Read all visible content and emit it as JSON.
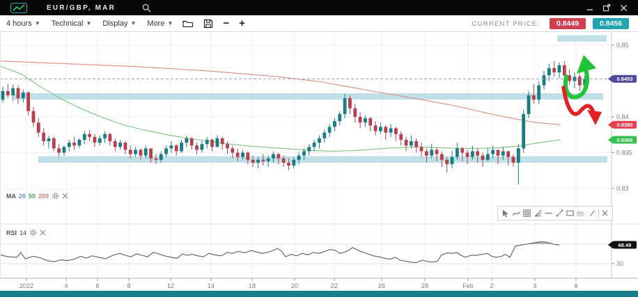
{
  "window": {
    "title": "EUR/GBP, MAR",
    "controls": {
      "minimize": "–",
      "popout": "popout",
      "close": "✕"
    }
  },
  "toolbar": {
    "menus": [
      {
        "label": "4 hours"
      },
      {
        "label": "Technical"
      },
      {
        "label": "Display"
      },
      {
        "label": "More"
      }
    ],
    "icons": [
      "open-chart",
      "save-chart",
      "zoom-out",
      "zoom-in"
    ],
    "zoom_out_glyph": "−",
    "zoom_in_glyph": "+",
    "current_price_label": "CURRENT PRICE:",
    "bid": "0.8449",
    "ask": "0.8456",
    "bid_color": "#d23f4e",
    "ask_color": "#21a3b1"
  },
  "legend_ma": {
    "name": "MA",
    "periods": [
      {
        "value": "20",
        "color": "#6b8fc9"
      },
      {
        "value": "50",
        "color": "#55a85a"
      },
      {
        "value": "200",
        "color": "#d87f77"
      }
    ]
  },
  "legend_rsi": {
    "name": "RSI",
    "period": "14"
  },
  "drawing_toolbar": {
    "icons": [
      "pointer",
      "brush",
      "pattern-grid",
      "pitchfork-lines",
      "horizontal-line",
      "trend-line",
      "rectangle",
      "text",
      "line",
      "close"
    ],
    "text_tool_label": "Abc"
  },
  "chart_data": {
    "type": "candlestick",
    "symbol": "EUR/GBP",
    "timeframe": "4 hours",
    "price_unit": 0.0001,
    "ylim": [
      0.8295,
      0.8525
    ],
    "first_open": 8424,
    "candles_hlc": [
      [
        8442,
        8420,
        8436
      ],
      [
        8446,
        8426,
        8430
      ],
      [
        8445,
        8422,
        8440
      ],
      [
        8444,
        8418,
        8426
      ],
      [
        8438,
        8420,
        8434
      ],
      [
        8436,
        8402,
        8408
      ],
      [
        8414,
        8386,
        8392
      ],
      [
        8398,
        8372,
        8378
      ],
      [
        8384,
        8360,
        8366
      ],
      [
        8374,
        8356,
        8370
      ],
      [
        8372,
        8352,
        8356
      ],
      [
        8362,
        8344,
        8350
      ],
      [
        8360,
        8346,
        8358
      ],
      [
        8368,
        8352,
        8364
      ],
      [
        8372,
        8354,
        8360
      ],
      [
        8370,
        8356,
        8368
      ],
      [
        8380,
        8362,
        8376
      ],
      [
        8382,
        8366,
        8372
      ],
      [
        8376,
        8358,
        8364
      ],
      [
        8374,
        8360,
        8370
      ],
      [
        8380,
        8364,
        8376
      ],
      [
        8378,
        8360,
        8366
      ],
      [
        8370,
        8352,
        8358
      ],
      [
        8368,
        8354,
        8364
      ],
      [
        8366,
        8348,
        8354
      ],
      [
        8360,
        8342,
        8348
      ],
      [
        8358,
        8344,
        8354
      ],
      [
        8356,
        8340,
        8346
      ],
      [
        8360,
        8342,
        8356
      ],
      [
        8354,
        8336,
        8342
      ],
      [
        8348,
        8334,
        8340
      ],
      [
        8352,
        8336,
        8348
      ],
      [
        8360,
        8344,
        8356
      ],
      [
        8366,
        8350,
        8360
      ],
      [
        8362,
        8346,
        8352
      ],
      [
        8368,
        8350,
        8364
      ],
      [
        8374,
        8358,
        8370
      ],
      [
        8372,
        8354,
        8360
      ],
      [
        8364,
        8348,
        8354
      ],
      [
        8366,
        8350,
        8362
      ],
      [
        8372,
        8356,
        8368
      ],
      [
        8370,
        8352,
        8358
      ],
      [
        8374,
        8358,
        8370
      ],
      [
        8372,
        8354,
        8362
      ],
      [
        8366,
        8348,
        8356
      ],
      [
        8360,
        8342,
        8350
      ],
      [
        8356,
        8338,
        8344
      ],
      [
        8354,
        8340,
        8350
      ],
      [
        8352,
        8334,
        8340
      ],
      [
        8346,
        8330,
        8336
      ],
      [
        8344,
        8328,
        8340
      ],
      [
        8348,
        8332,
        8338
      ],
      [
        8346,
        8330,
        8342
      ],
      [
        8352,
        8336,
        8348
      ],
      [
        8350,
        8334,
        8342
      ],
      [
        8346,
        8330,
        8336
      ],
      [
        8342,
        8326,
        8332
      ],
      [
        8344,
        8328,
        8340
      ],
      [
        8350,
        8334,
        8346
      ],
      [
        8356,
        8340,
        8352
      ],
      [
        8362,
        8346,
        8358
      ],
      [
        8368,
        8352,
        8364
      ],
      [
        8374,
        8356,
        8370
      ],
      [
        8382,
        8364,
        8378
      ],
      [
        8390,
        8372,
        8386
      ],
      [
        8398,
        8380,
        8394
      ],
      [
        8408,
        8388,
        8404
      ],
      [
        8432,
        8398,
        8426
      ],
      [
        8430,
        8404,
        8412
      ],
      [
        8418,
        8392,
        8400
      ],
      [
        8406,
        8384,
        8392
      ],
      [
        8402,
        8386,
        8398
      ],
      [
        8400,
        8380,
        8388
      ],
      [
        8394,
        8374,
        8380
      ],
      [
        8392,
        8376,
        8386
      ],
      [
        8388,
        8368,
        8378
      ],
      [
        8390,
        8372,
        8384
      ],
      [
        8386,
        8366,
        8376
      ],
      [
        8380,
        8360,
        8368
      ],
      [
        8372,
        8352,
        8360
      ],
      [
        8374,
        8356,
        8366
      ],
      [
        8370,
        8350,
        8358
      ],
      [
        8364,
        8344,
        8352
      ],
      [
        8356,
        8336,
        8346
      ],
      [
        8362,
        8342,
        8354
      ],
      [
        8358,
        8338,
        8348
      ],
      [
        8352,
        8330,
        8340
      ],
      [
        8344,
        8322,
        8334
      ],
      [
        8352,
        8328,
        8344
      ],
      [
        8364,
        8340,
        8356
      ],
      [
        8358,
        8338,
        8350
      ],
      [
        8354,
        8334,
        8344
      ],
      [
        8360,
        8340,
        8352
      ],
      [
        8356,
        8336,
        8346
      ],
      [
        8350,
        8330,
        8340
      ],
      [
        8356,
        8338,
        8348
      ],
      [
        8360,
        8342,
        8354
      ],
      [
        8354,
        8334,
        8346
      ],
      [
        8358,
        8340,
        8352
      ],
      [
        8352,
        8332,
        8344
      ],
      [
        8348,
        8330,
        8336
      ],
      [
        8362,
        8306,
        8356
      ],
      [
        8410,
        8350,
        8404
      ],
      [
        8436,
        8398,
        8430
      ],
      [
        8446,
        8418,
        8424
      ],
      [
        8450,
        8418,
        8444
      ],
      [
        8464,
        8438,
        8458
      ],
      [
        8474,
        8450,
        8468
      ],
      [
        8478,
        8456,
        8462
      ],
      [
        8476,
        8454,
        8472
      ],
      [
        8478,
        8450,
        8458
      ],
      [
        8466,
        8444,
        8450
      ],
      [
        8462,
        8440,
        8456
      ],
      [
        8460,
        8436,
        8444
      ],
      [
        8458,
        8438,
        8453
      ]
    ],
    "up_color": "#1a7d85",
    "down_color": "#b6414d",
    "ma_200": {
      "color": "#dd8a81",
      "points": [
        [
          0,
          8478
        ],
        [
          100,
          8474
        ],
        [
          200,
          8470
        ],
        [
          300,
          8464
        ],
        [
          400,
          8456
        ],
        [
          460,
          8449
        ],
        [
          500,
          8442
        ],
        [
          540,
          8435
        ],
        [
          600,
          8425
        ],
        [
          650,
          8416
        ],
        [
          700,
          8405
        ],
        [
          740,
          8397
        ],
        [
          770,
          8392
        ],
        [
          805,
          8389
        ]
      ]
    },
    "ma_50": {
      "color": "#7cc284",
      "points": [
        [
          0,
          8471
        ],
        [
          30,
          8460
        ],
        [
          60,
          8441
        ],
        [
          90,
          8424
        ],
        [
          120,
          8410
        ],
        [
          150,
          8398
        ],
        [
          180,
          8388
        ],
        [
          210,
          8381
        ],
        [
          240,
          8375
        ],
        [
          270,
          8370
        ],
        [
          300,
          8366
        ],
        [
          330,
          8362
        ],
        [
          360,
          8359
        ],
        [
          390,
          8357
        ],
        [
          420,
          8355
        ],
        [
          450,
          8353
        ],
        [
          480,
          8352
        ],
        [
          510,
          8353
        ],
        [
          540,
          8355
        ],
        [
          570,
          8357
        ],
        [
          600,
          8358
        ],
        [
          630,
          8357
        ],
        [
          660,
          8356
        ],
        [
          690,
          8356
        ],
        [
          720,
          8357
        ],
        [
          750,
          8360
        ],
        [
          775,
          8364
        ],
        [
          805,
          8368
        ]
      ]
    },
    "zones": [
      {
        "name": "resistance-zone",
        "x1": 20,
        "x2": 866,
        "p1": 8424,
        "p2": 8433
      },
      {
        "name": "support-zone",
        "x1": 55,
        "x2": 872,
        "p1": 8336,
        "p2": 8345
      },
      {
        "name": "upper-resistance-zone",
        "x1": 800,
        "x2": 871,
        "p1": 8505,
        "p2": 8514
      }
    ],
    "zone_color": "#b9dde4",
    "last_price_line": {
      "value": 8453,
      "label": "0.8453",
      "badge_color": "#4f4c9f"
    },
    "price_axis": {
      "ticks": [
        {
          "label": "0.85",
          "value": 8500
        },
        {
          "label": "0.84",
          "value": 8400
        },
        {
          "label": "0.835",
          "value": 8350
        },
        {
          "label": "0.83",
          "value": 8300
        }
      ],
      "badges": [
        {
          "label": "0.8389",
          "value": 8389,
          "color": "#e8404e"
        },
        {
          "label": "0.8368",
          "value": 8368,
          "color": "#35c14e"
        }
      ]
    },
    "time_axis": {
      "ticks": [
        {
          "label": "2022",
          "x": 38
        },
        {
          "label": "4",
          "x": 95
        },
        {
          "label": "6",
          "x": 140
        },
        {
          "label": "8",
          "x": 185
        },
        {
          "label": "12",
          "x": 245
        },
        {
          "label": "14",
          "x": 303
        },
        {
          "label": "18",
          "x": 362
        },
        {
          "label": "20",
          "x": 423
        },
        {
          "label": "22",
          "x": 480
        },
        {
          "label": "26",
          "x": 548
        },
        {
          "label": "28",
          "x": 610
        },
        {
          "label": "Feb",
          "x": 672
        },
        {
          "label": "2",
          "x": 706
        },
        {
          "label": "4",
          "x": 768
        },
        {
          "label": "8",
          "x": 827
        }
      ]
    },
    "rsi": {
      "period": 14,
      "current_value": 68.49,
      "badge_label": "68.49",
      "levels": [
        70,
        30
      ],
      "lower_tick_label": "30",
      "line_color": "#5c5c5c",
      "points": [
        [
          0,
          48
        ],
        [
          12,
          44
        ],
        [
          24,
          43
        ],
        [
          30,
          53
        ],
        [
          36,
          40
        ],
        [
          48,
          45
        ],
        [
          58,
          42
        ],
        [
          68,
          36
        ],
        [
          78,
          34
        ],
        [
          88,
          38
        ],
        [
          96,
          36
        ],
        [
          106,
          39
        ],
        [
          116,
          45
        ],
        [
          124,
          41
        ],
        [
          132,
          46
        ],
        [
          142,
          43
        ],
        [
          152,
          40
        ],
        [
          162,
          47
        ],
        [
          172,
          51
        ],
        [
          180,
          47
        ],
        [
          188,
          44
        ],
        [
          196,
          50
        ],
        [
          204,
          47
        ],
        [
          212,
          44
        ],
        [
          220,
          53
        ],
        [
          228,
          50
        ],
        [
          236,
          46
        ],
        [
          246,
          43
        ],
        [
          254,
          41
        ],
        [
          262,
          50
        ],
        [
          268,
          47
        ],
        [
          276,
          49
        ],
        [
          284,
          46
        ],
        [
          292,
          44
        ],
        [
          300,
          51
        ],
        [
          308,
          48
        ],
        [
          318,
          46
        ],
        [
          326,
          53
        ],
        [
          334,
          51
        ],
        [
          342,
          55
        ],
        [
          352,
          52
        ],
        [
          360,
          57
        ],
        [
          368,
          54
        ],
        [
          376,
          51
        ],
        [
          384,
          53
        ],
        [
          392,
          57
        ],
        [
          398,
          61
        ],
        [
          404,
          56
        ],
        [
          410,
          44
        ],
        [
          418,
          49
        ],
        [
          426,
          46
        ],
        [
          434,
          51
        ],
        [
          442,
          48
        ],
        [
          450,
          53
        ],
        [
          458,
          51
        ],
        [
          466,
          55
        ],
        [
          474,
          59
        ],
        [
          482,
          57
        ],
        [
          488,
          51
        ],
        [
          494,
          53
        ],
        [
          500,
          57
        ],
        [
          506,
          63
        ],
        [
          512,
          59
        ],
        [
          520,
          54
        ],
        [
          528,
          50
        ],
        [
          536,
          46
        ],
        [
          544,
          44
        ],
        [
          552,
          41
        ],
        [
          560,
          39
        ],
        [
          568,
          43
        ],
        [
          574,
          37
        ],
        [
          582,
          35
        ],
        [
          590,
          33
        ],
        [
          598,
          32
        ],
        [
          606,
          37
        ],
        [
          612,
          35
        ],
        [
          620,
          33
        ],
        [
          628,
          35
        ],
        [
          634,
          48
        ],
        [
          642,
          52
        ],
        [
          650,
          51
        ],
        [
          656,
          53
        ],
        [
          662,
          47
        ],
        [
          668,
          43
        ],
        [
          676,
          47
        ],
        [
          684,
          47
        ],
        [
          692,
          49
        ],
        [
          700,
          51
        ],
        [
          706,
          45
        ],
        [
          712,
          43
        ],
        [
          720,
          45
        ],
        [
          726,
          49
        ],
        [
          732,
          43
        ],
        [
          740,
          66
        ],
        [
          748,
          68
        ],
        [
          756,
          70
        ],
        [
          764,
          72
        ],
        [
          772,
          74
        ],
        [
          778,
          75
        ],
        [
          784,
          74
        ],
        [
          790,
          72
        ],
        [
          794,
          70
        ],
        [
          798,
          69
        ],
        [
          803,
          68.5
        ]
      ]
    },
    "annotations": [
      {
        "name": "bullish-arrow",
        "type": "curved-arrow-up",
        "color": "#1fc437"
      },
      {
        "name": "bearish-arrow",
        "type": "curved-arrow-down",
        "color": "#e32227"
      }
    ]
  }
}
